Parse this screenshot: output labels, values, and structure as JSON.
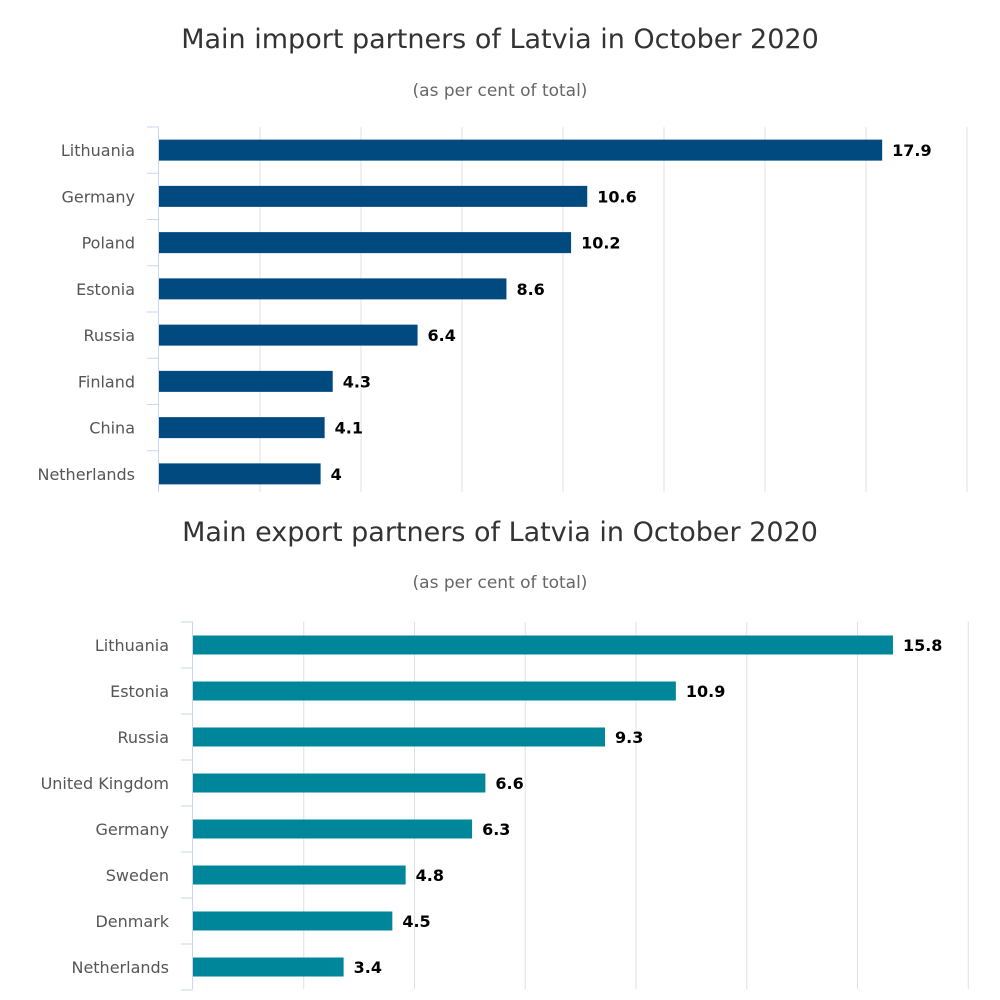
{
  "chart_data": [
    {
      "id": "import",
      "type": "bar",
      "orientation": "horizontal",
      "title": "Main import partners of Latvia in October 2020",
      "subtitle": "(as per cent of total)",
      "categories": [
        "Lithuania",
        "Germany",
        "Poland",
        "Estonia",
        "Russia",
        "Finland",
        "China",
        "Netherlands"
      ],
      "values": [
        17.9,
        10.6,
        10.2,
        8.6,
        6.4,
        4.3,
        4.1,
        4
      ],
      "xlim": [
        0,
        20
      ],
      "grid": true,
      "color": "#004a80"
    },
    {
      "id": "export",
      "type": "bar",
      "orientation": "horizontal",
      "title": "Main export partners of Latvia in October 2020",
      "subtitle": "(as per cent of total)",
      "categories": [
        "Lithuania",
        "Estonia",
        "Russia",
        "United Kingdom",
        "Germany",
        "Sweden",
        "Denmark",
        "Netherlands"
      ],
      "values": [
        15.8,
        10.9,
        9.3,
        6.6,
        6.3,
        4.8,
        4.5,
        3.4
      ],
      "xlim": [
        0,
        17.5
      ],
      "grid": true,
      "color": "#00869a"
    }
  ]
}
